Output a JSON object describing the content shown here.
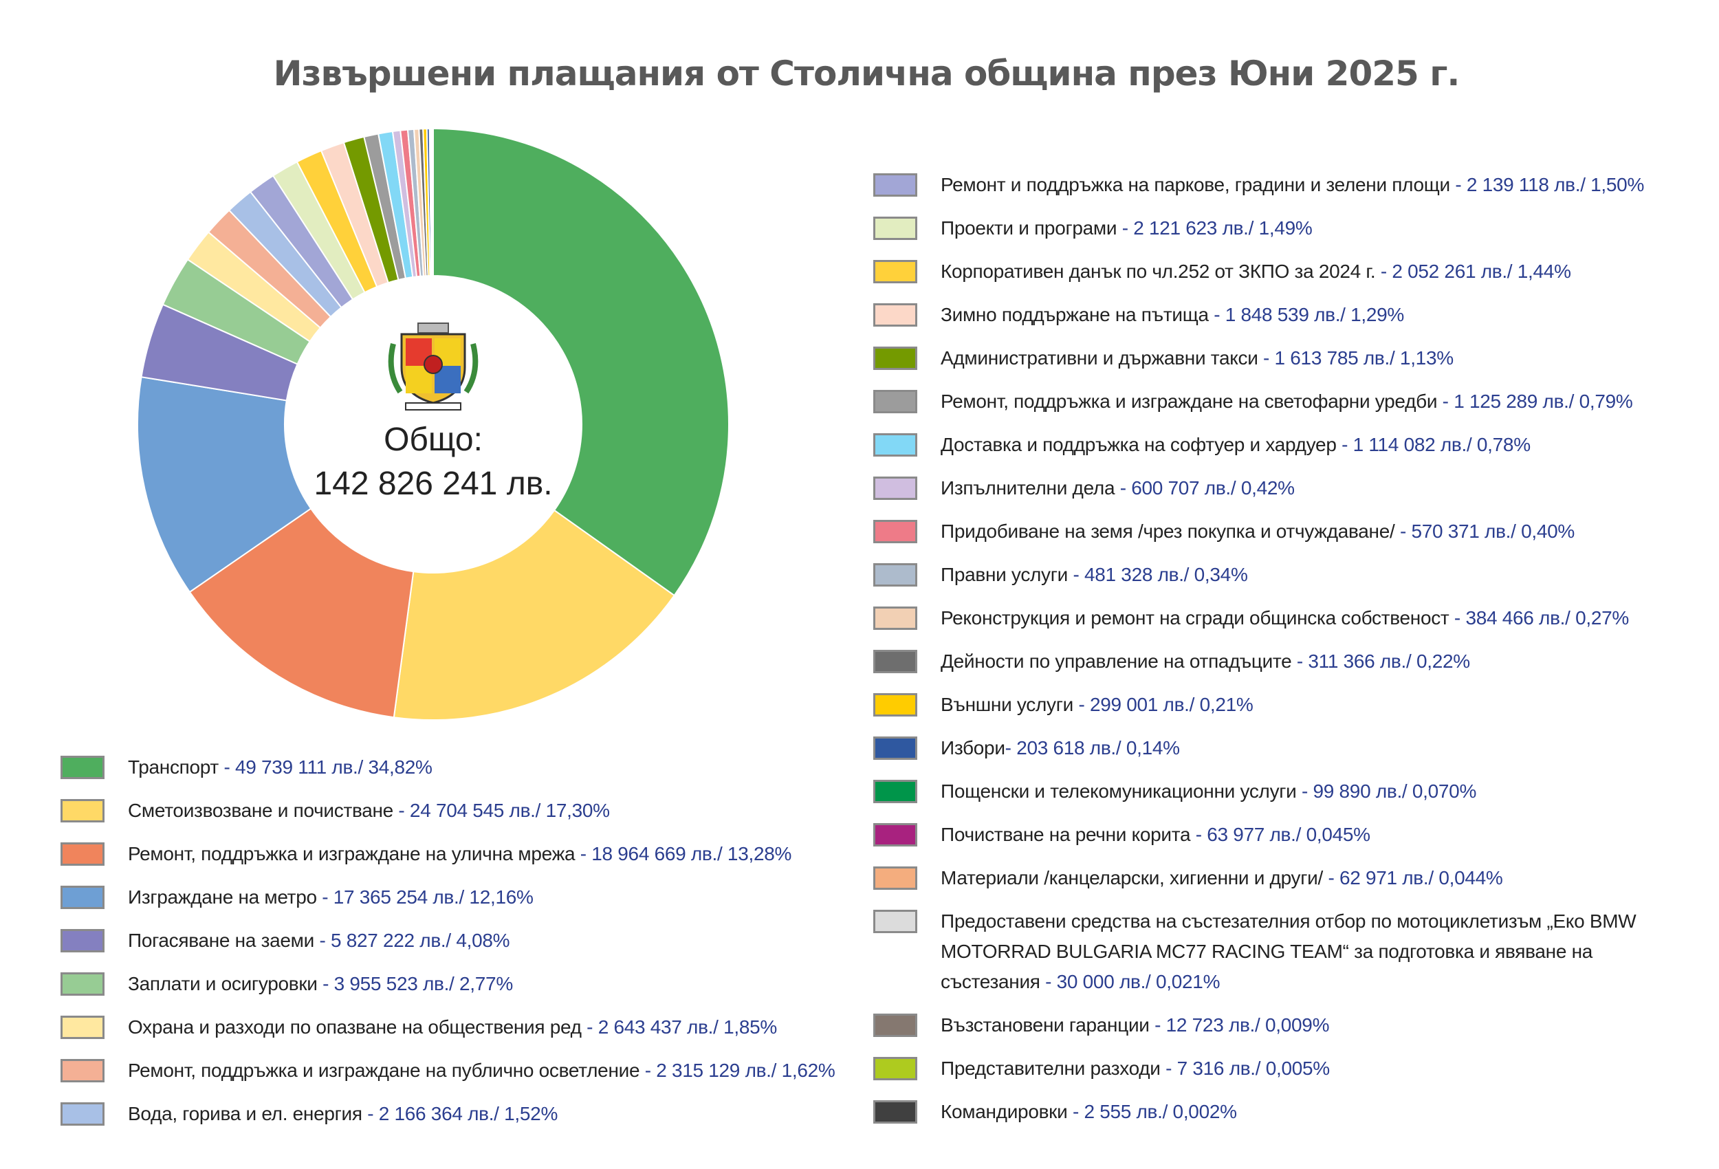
{
  "title": "Извършени плащания от Столична община през Юни 2025 г.",
  "center": {
    "label": "Общо:",
    "total": "142 826 241 лв."
  },
  "chart_data": {
    "type": "pie",
    "variant": "donut",
    "title": "Извършени плащания от Столична община през Юни 2025 г.",
    "total_bgn": 142826241,
    "start_angle": "top, clockwise",
    "slices": [
      {
        "label": "Транспорт",
        "value": 49739111,
        "value_text": "49 739 111 лв./ 34,82%",
        "color": "#4fae5e"
      },
      {
        "label": "Сметоизвозване и почистване",
        "value": 24704545,
        "value_text": "24 704 545 лв./ 17,30%",
        "color": "#ffd966"
      },
      {
        "label": "Ремонт, поддръжка и изграждане на улична мрежа",
        "value": 18964669,
        "value_text": "18 964 669 лв./ 13,28%",
        "color": "#f0845c"
      },
      {
        "label": "Изграждане на метро",
        "value": 17365254,
        "value_text": "17 365 254 лв./ 12,16%",
        "color": "#6e9fd4"
      },
      {
        "label": "Погасяване на заеми",
        "value": 5827222,
        "value_text": "5 827 222 лв./ 4,08%",
        "color": "#8480c0"
      },
      {
        "label": "Заплати и осигуровки",
        "value": 3955523,
        "value_text": "3 955 523 лв./ 2,77%",
        "color": "#97cc94"
      },
      {
        "label": "Охрана и разходи по опазване на обществения ред",
        "value": 2643437,
        "value_text": "2 643 437 лв./ 1,85%",
        "color": "#ffe8a0"
      },
      {
        "label": "Ремонт, поддръжка и изграждане на публично осветление",
        "value": 2315129,
        "value_text": "2 315 129 лв./ 1,62%",
        "color": "#f4b095"
      },
      {
        "label": "Вода, горива и ел. енергия",
        "value": 2166364,
        "value_text": "2 166 364 лв./ 1,52%",
        "color": "#a8c0e6"
      },
      {
        "label": "Ремонт и поддръжка на паркове, градини и зелени площи",
        "value": 2139118,
        "value_text": "2 139 118 лв./ 1,50%",
        "color": "#a2a6d6"
      },
      {
        "label": "Проекти и програми",
        "value": 2121623,
        "value_text": "2 121 623 лв./ 1,49%",
        "color": "#e2edc0"
      },
      {
        "label": "Корпоративен данък по чл.252 от ЗКПО за 2024 г.",
        "value": 2052261,
        "value_text": "2 052 261 лв./ 1,44%",
        "color": "#ffd13a"
      },
      {
        "label": "Зимно поддържане на пътища",
        "value": 1848539,
        "value_text": "1 848 539 лв./ 1,29%",
        "color": "#fcd8c8"
      },
      {
        "label": "Административни и държавни такси",
        "value": 1613785,
        "value_text": "1 613 785 лв./ 1,13%",
        "color": "#749a00"
      },
      {
        "label": "Ремонт, поддръжка и изграждане на светофарни уредби",
        "value": 1125289,
        "value_text": "1 125 289 лв./ 0,79%",
        "color": "#9c9c9c"
      },
      {
        "label": "Доставка и поддръжка на софтуер и хардуер",
        "value": 1114082,
        "value_text": "1 114 082 лв./ 0,78%",
        "color": "#82d8f6"
      },
      {
        "label": "Изпълнителни дела",
        "value": 600707,
        "value_text": "600 707 лв./ 0,42%",
        "color": "#d0bee0"
      },
      {
        "label": "Придобиване на земя /чрез покупка и отчуждаване/",
        "value": 570371,
        "value_text": "570 371 лв./ 0,40%",
        "color": "#ee7b88"
      },
      {
        "label": "Правни услуги",
        "value": 481328,
        "value_text": "481 328 лв./ 0,34%",
        "color": "#adbbcc"
      },
      {
        "label": "Реконструкция и ремонт на сгради общинска собственост",
        "value": 384466,
        "value_text": "384 466 лв./ 0,27%",
        "color": "#f2d0b4"
      },
      {
        "label": "Дейности по управление на отпадъците",
        "value": 311366,
        "value_text": "311 366 лв./ 0,22%",
        "color": "#6e6e6e"
      },
      {
        "label": "Външни услуги",
        "value": 299001,
        "value_text": "299 001 лв./ 0,21%",
        "color": "#ffcc00"
      },
      {
        "label": "Избори",
        "value": 203618,
        "value_text": "203 618 лв./ 0,14%",
        "color": "#2f58a0",
        "sep": "- "
      },
      {
        "label": "Пощенски и телекомуникационни услуги",
        "value": 99890,
        "value_text": "99 890 лв./ 0,070%",
        "color": "#00954a"
      },
      {
        "label": "Почистване на речни корита",
        "value": 63977,
        "value_text": "63 977 лв./ 0,045%",
        "color": "#a8227f"
      },
      {
        "label": "Материали /канцеларски, хигиенни и други/",
        "value": 62971,
        "value_text": "62 971 лв./ 0,044%",
        "color": "#f4ad7e"
      },
      {
        "label": "Предоставени средства на състезателния отбор по мотоциклетизъм „Еко BMW MOTORRAD BULGARIA MC77 RACING TEAM“ за подготовка и явяване на състезания",
        "value": 30000,
        "value_text": "30 000 лв./ 0,021%",
        "color": "#dcdcdc"
      },
      {
        "label": "Възстановени гаранции",
        "value": 12723,
        "value_text": "12 723 лв./ 0,009%",
        "color": "#857870"
      },
      {
        "label": "Представителни разходи",
        "value": 7316,
        "value_text": "7 316 лв./ 0,005%",
        "color": "#aecb1f"
      },
      {
        "label": "Командировки",
        "value": 2555,
        "value_text": "2 555 лв./ 0,002%",
        "color": "#404040"
      }
    ],
    "legend_split": 9
  }
}
